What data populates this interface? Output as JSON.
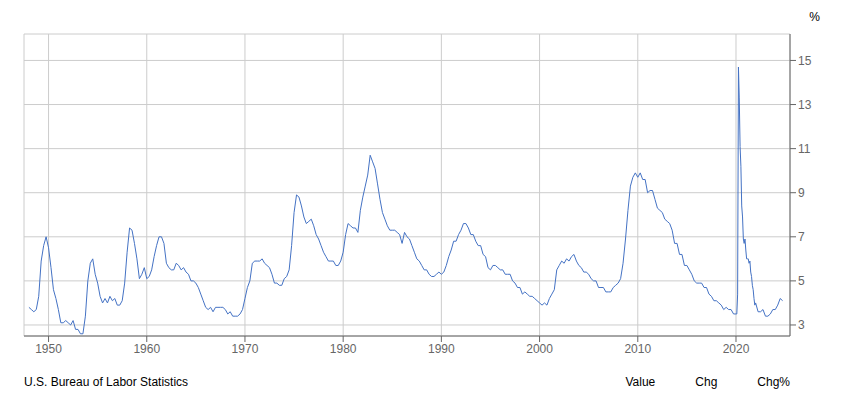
{
  "chart_data": {
    "type": "line",
    "ylabel": "%",
    "annotations": [
      "U.S. Bureau of Labor Statistics",
      "Value",
      "Chg",
      "Chg%"
    ],
    "color": "#4472C4",
    "grid": true,
    "xlim": [
      1947.5,
      2025.5
    ],
    "xticks": [
      1950,
      1960,
      1970,
      1980,
      1990,
      2000,
      2010,
      2020
    ],
    "ylim": [
      2.5,
      16.2
    ],
    "yticks": [
      3,
      5,
      7,
      9,
      11,
      13,
      15
    ],
    "x": [
      1948.0,
      1948.25,
      1948.5,
      1948.75,
      1949.0,
      1949.25,
      1949.5,
      1949.75,
      1950.0,
      1950.25,
      1950.5,
      1950.75,
      1951.0,
      1951.25,
      1951.5,
      1951.75,
      1952.0,
      1952.25,
      1952.5,
      1952.75,
      1953.0,
      1953.25,
      1953.5,
      1953.75,
      1954.0,
      1954.25,
      1954.5,
      1954.75,
      1955.0,
      1955.25,
      1955.5,
      1955.75,
      1956.0,
      1956.25,
      1956.5,
      1956.75,
      1957.0,
      1957.25,
      1957.5,
      1957.75,
      1958.0,
      1958.25,
      1958.5,
      1958.75,
      1959.0,
      1959.25,
      1959.5,
      1959.75,
      1960.0,
      1960.25,
      1960.5,
      1960.75,
      1961.0,
      1961.25,
      1961.5,
      1961.75,
      1962.0,
      1962.25,
      1962.5,
      1962.75,
      1963.0,
      1963.25,
      1963.5,
      1963.75,
      1964.0,
      1964.25,
      1964.5,
      1964.75,
      1965.0,
      1965.25,
      1965.5,
      1965.75,
      1966.0,
      1966.25,
      1966.5,
      1966.75,
      1967.0,
      1967.25,
      1967.5,
      1967.75,
      1968.0,
      1968.25,
      1968.5,
      1968.75,
      1969.0,
      1969.25,
      1969.5,
      1969.75,
      1970.0,
      1970.25,
      1970.5,
      1970.75,
      1971.0,
      1971.25,
      1971.5,
      1971.75,
      1972.0,
      1972.25,
      1972.5,
      1972.75,
      1973.0,
      1973.25,
      1973.5,
      1973.75,
      1974.0,
      1974.25,
      1974.5,
      1974.75,
      1975.0,
      1975.25,
      1975.5,
      1975.75,
      1976.0,
      1976.25,
      1976.5,
      1976.75,
      1977.0,
      1977.25,
      1977.5,
      1977.75,
      1978.0,
      1978.25,
      1978.5,
      1978.75,
      1979.0,
      1979.25,
      1979.5,
      1979.75,
      1980.0,
      1980.25,
      1980.5,
      1980.75,
      1981.0,
      1981.25,
      1981.5,
      1981.75,
      1982.0,
      1982.25,
      1982.5,
      1982.75,
      1983.0,
      1983.25,
      1983.5,
      1983.75,
      1984.0,
      1984.25,
      1984.5,
      1984.75,
      1985.0,
      1985.25,
      1985.5,
      1985.75,
      1986.0,
      1986.25,
      1986.5,
      1986.75,
      1987.0,
      1987.25,
      1987.5,
      1987.75,
      1988.0,
      1988.25,
      1988.5,
      1988.75,
      1989.0,
      1989.25,
      1989.5,
      1989.75,
      1990.0,
      1990.25,
      1990.5,
      1990.75,
      1991.0,
      1991.25,
      1991.5,
      1991.75,
      1992.0,
      1992.25,
      1992.5,
      1992.75,
      1993.0,
      1993.25,
      1993.5,
      1993.75,
      1994.0,
      1994.25,
      1994.5,
      1994.75,
      1995.0,
      1995.25,
      1995.5,
      1995.75,
      1996.0,
      1996.25,
      1996.5,
      1996.75,
      1997.0,
      1997.25,
      1997.5,
      1997.75,
      1998.0,
      1998.25,
      1998.5,
      1998.75,
      1999.0,
      1999.25,
      1999.5,
      1999.75,
      2000.0,
      2000.25,
      2000.5,
      2000.75,
      2001.0,
      2001.25,
      2001.5,
      2001.75,
      2002.0,
      2002.25,
      2002.5,
      2002.75,
      2003.0,
      2003.25,
      2003.5,
      2003.75,
      2004.0,
      2004.25,
      2004.5,
      2004.75,
      2005.0,
      2005.25,
      2005.5,
      2005.75,
      2006.0,
      2006.25,
      2006.5,
      2006.75,
      2007.0,
      2007.25,
      2007.5,
      2007.75,
      2008.0,
      2008.25,
      2008.5,
      2008.75,
      2009.0,
      2009.25,
      2009.5,
      2009.75,
      2010.0,
      2010.25,
      2010.5,
      2010.75,
      2011.0,
      2011.25,
      2011.5,
      2011.75,
      2012.0,
      2012.25,
      2012.5,
      2012.75,
      2013.0,
      2013.25,
      2013.5,
      2013.75,
      2014.0,
      2014.25,
      2014.5,
      2014.75,
      2015.0,
      2015.25,
      2015.5,
      2015.75,
      2016.0,
      2016.25,
      2016.5,
      2016.75,
      2017.0,
      2017.25,
      2017.5,
      2017.75,
      2018.0,
      2018.25,
      2018.5,
      2018.75,
      2019.0,
      2019.25,
      2019.5,
      2019.75,
      2020.0,
      2020.083,
      2020.167,
      2020.25,
      2020.333,
      2020.417,
      2020.5,
      2020.583,
      2020.667,
      2020.75,
      2020.833,
      2020.917,
      2021.0,
      2021.083,
      2021.167,
      2021.25,
      2021.333,
      2021.417,
      2021.5,
      2021.583,
      2021.667,
      2021.75,
      2021.833,
      2021.917,
      2022.0,
      2022.25,
      2022.5,
      2022.75,
      2023.0,
      2023.25,
      2023.5,
      2023.75,
      2024.0,
      2024.25,
      2024.5,
      2024.75
    ],
    "values": [
      3.8,
      3.7,
      3.6,
      3.7,
      4.3,
      5.9,
      6.6,
      7.0,
      6.5,
      5.6,
      4.6,
      4.2,
      3.7,
      3.1,
      3.1,
      3.2,
      3.1,
      3.0,
      3.2,
      2.8,
      2.8,
      2.6,
      2.6,
      3.4,
      5.0,
      5.8,
      6.0,
      5.3,
      4.9,
      4.3,
      4.0,
      4.2,
      4.0,
      4.3,
      4.1,
      4.2,
      3.9,
      3.9,
      4.1,
      4.9,
      6.3,
      7.4,
      7.3,
      6.7,
      6.0,
      5.1,
      5.3,
      5.6,
      5.1,
      5.2,
      5.5,
      6.1,
      6.6,
      7.0,
      7.0,
      6.7,
      5.8,
      5.6,
      5.5,
      5.5,
      5.8,
      5.7,
      5.5,
      5.6,
      5.4,
      5.3,
      5.0,
      5.0,
      4.9,
      4.7,
      4.4,
      4.1,
      3.8,
      3.7,
      3.8,
      3.6,
      3.8,
      3.8,
      3.8,
      3.8,
      3.7,
      3.5,
      3.6,
      3.4,
      3.4,
      3.4,
      3.5,
      3.7,
      4.2,
      4.7,
      5.0,
      5.8,
      5.9,
      5.9,
      5.9,
      6.0,
      5.8,
      5.7,
      5.6,
      5.3,
      4.9,
      4.9,
      4.8,
      4.8,
      5.1,
      5.2,
      5.5,
      6.6,
      8.1,
      8.9,
      8.8,
      8.4,
      7.9,
      7.6,
      7.7,
      7.8,
      7.5,
      7.1,
      6.9,
      6.6,
      6.3,
      6.1,
      5.9,
      5.9,
      5.9,
      5.7,
      5.7,
      5.9,
      6.3,
      7.1,
      7.6,
      7.5,
      7.4,
      7.4,
      7.2,
      8.2,
      8.8,
      9.3,
      9.8,
      10.7,
      10.4,
      10.1,
      9.4,
      8.7,
      8.1,
      7.8,
      7.5,
      7.3,
      7.3,
      7.3,
      7.2,
      7.1,
      6.7,
      7.2,
      7.0,
      6.9,
      6.6,
      6.3,
      6.0,
      5.9,
      5.7,
      5.5,
      5.5,
      5.3,
      5.2,
      5.2,
      5.3,
      5.4,
      5.3,
      5.4,
      5.7,
      6.1,
      6.4,
      6.8,
      6.8,
      7.1,
      7.3,
      7.6,
      7.6,
      7.4,
      7.1,
      7.1,
      6.8,
      6.6,
      6.6,
      6.2,
      6.1,
      5.6,
      5.5,
      5.7,
      5.7,
      5.6,
      5.5,
      5.5,
      5.3,
      5.3,
      5.3,
      5.0,
      4.9,
      4.7,
      4.7,
      4.4,
      4.5,
      4.4,
      4.3,
      4.3,
      4.2,
      4.1,
      4.0,
      3.9,
      4.0,
      3.9,
      4.2,
      4.4,
      4.6,
      5.5,
      5.7,
      5.9,
      5.8,
      6.0,
      5.9,
      6.1,
      6.2,
      5.9,
      5.7,
      5.6,
      5.4,
      5.4,
      5.3,
      5.1,
      5.0,
      5.0,
      4.7,
      4.7,
      4.7,
      4.5,
      4.5,
      4.5,
      4.7,
      4.8,
      4.9,
      5.1,
      5.8,
      6.9,
      8.2,
      9.3,
      9.7,
      9.9,
      9.7,
      9.9,
      9.6,
      9.6,
      9.0,
      9.1,
      9.1,
      8.7,
      8.3,
      8.2,
      8.1,
      7.8,
      7.7,
      7.6,
      7.3,
      6.7,
      6.7,
      6.2,
      6.2,
      5.7,
      5.7,
      5.5,
      5.3,
      5.0,
      4.9,
      4.9,
      4.9,
      4.7,
      4.7,
      4.4,
      4.3,
      4.1,
      4.1,
      4.0,
      3.9,
      3.7,
      3.8,
      3.7,
      3.7,
      3.5,
      3.5,
      3.5,
      4.4,
      14.7,
      13.3,
      11.1,
      10.2,
      8.4,
      7.9,
      6.9,
      6.7,
      6.9,
      6.4,
      6.0,
      6.0,
      6.0,
      5.8,
      5.9,
      5.4,
      5.2,
      4.8,
      4.6,
      4.2,
      3.9,
      4.0,
      3.6,
      3.6,
      3.7,
      3.4,
      3.4,
      3.5,
      3.7,
      3.7,
      3.9,
      4.2,
      4.1
    ]
  }
}
